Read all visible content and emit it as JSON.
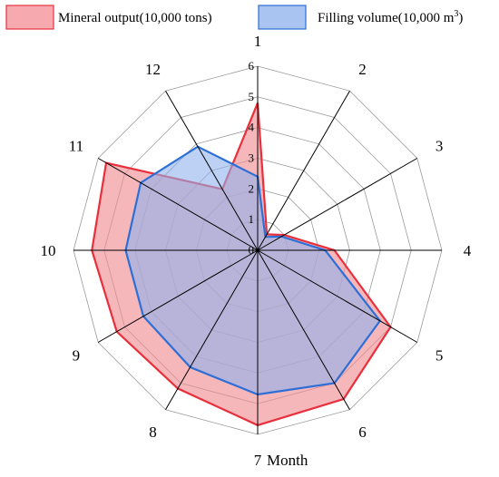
{
  "chart_data": {
    "type": "radar",
    "title": "",
    "categories": [
      "1",
      "2",
      "3",
      "4",
      "5",
      "6",
      "7",
      "8",
      "9",
      "10",
      "11",
      "12"
    ],
    "axis_suffix_label": "Month",
    "radial_ticks": [
      "0",
      "1",
      "2",
      "3",
      "4",
      "5",
      "6"
    ],
    "rlim": [
      0,
      6
    ],
    "grid": true,
    "legend_position": "top",
    "series": [
      {
        "name": "Mineral output(10,000 tons)",
        "values": [
          4.8,
          0.6,
          1.0,
          2.5,
          5.0,
          5.6,
          5.7,
          5.2,
          5.3,
          5.4,
          5.7,
          2.3
        ],
        "stroke": "#e8303c",
        "fill": "#f08a92"
      },
      {
        "name": "Filling volume(10,000 m3)",
        "name_main": "Filling volume(10,000  m",
        "name_sup": "3",
        "name_tail": ")",
        "values": [
          2.4,
          0.5,
          0.9,
          2.2,
          4.6,
          5.0,
          4.7,
          4.4,
          4.3,
          4.3,
          4.4,
          3.9
        ],
        "stroke": "#2d6fd6",
        "fill": "#8fb2ec"
      }
    ]
  }
}
